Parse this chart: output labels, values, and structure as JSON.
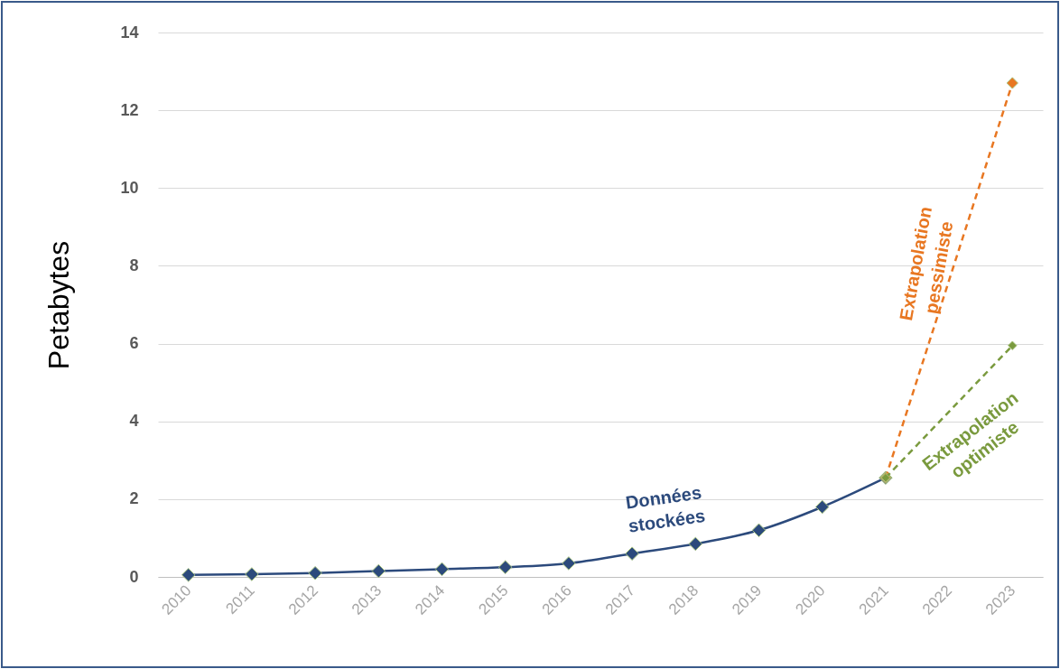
{
  "chart_data": {
    "type": "line",
    "ylabel": "Petabytes",
    "categories": [
      "2010",
      "2011",
      "2012",
      "2013",
      "2014",
      "2015",
      "2016",
      "2017",
      "2018",
      "2019",
      "2020",
      "2021",
      "2022",
      "2023"
    ],
    "series": [
      {
        "name": "Données stockées",
        "color": "#2c4a7c",
        "line_style": "solid",
        "values": [
          0.05,
          0.07,
          0.1,
          0.15,
          0.2,
          0.25,
          0.35,
          0.6,
          0.85,
          1.2,
          1.8,
          2.55,
          null,
          null
        ]
      },
      {
        "name": "Extrapolation pessimiste",
        "color": "#e87722",
        "line_style": "dashed",
        "values": [
          null,
          null,
          null,
          null,
          null,
          null,
          null,
          null,
          null,
          null,
          null,
          2.55,
          null,
          12.7
        ]
      },
      {
        "name": "Extrapolation optimiste",
        "color": "#7a9a3e",
        "line_style": "dashed",
        "values": [
          null,
          null,
          null,
          null,
          null,
          null,
          null,
          null,
          null,
          null,
          null,
          2.55,
          null,
          5.95
        ]
      }
    ],
    "ylim": [
      0,
      14
    ],
    "yticks": [
      0,
      2,
      4,
      6,
      8,
      10,
      12,
      14
    ],
    "grid": "y",
    "marker": "diamond"
  }
}
